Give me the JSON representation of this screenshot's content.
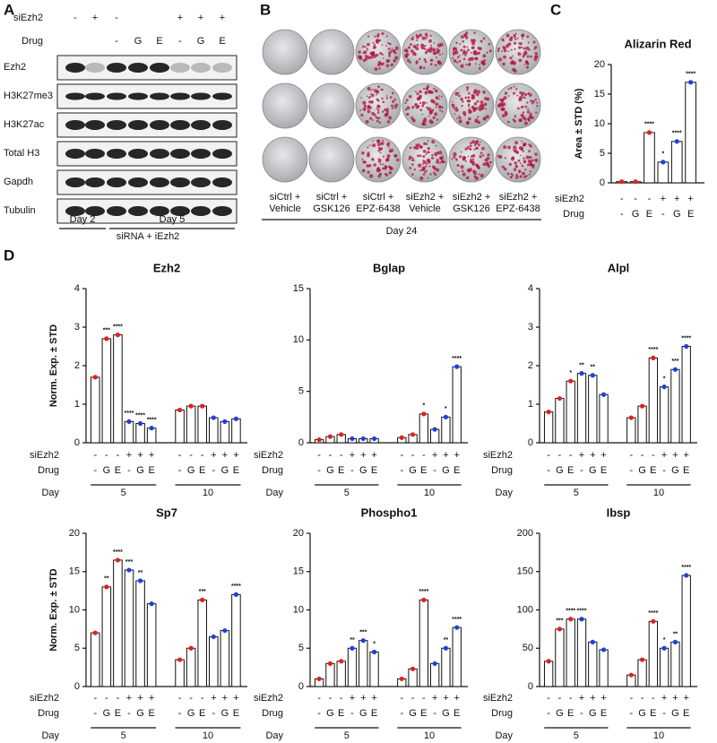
{
  "panel_labels": [
    "A",
    "B",
    "C",
    "D"
  ],
  "panel_a": {
    "row_labels": [
      {
        "label": "siEzh2",
        "values": [
          "-",
          "+",
          "-",
          null,
          null,
          "+",
          "+",
          "+"
        ]
      },
      {
        "label": "Drug",
        "values": [
          null,
          null,
          "-",
          "G",
          "E",
          "-",
          "G",
          "E"
        ]
      }
    ],
    "blots": [
      "Ezh2",
      "H3K27me3",
      "H3K27ac",
      "Total H3",
      "Gapdh",
      "Tubulin"
    ],
    "day_labels": [
      "Day 2",
      "Day 5"
    ],
    "footer": "siRNA + iEzh2"
  },
  "panel_b": {
    "conditions": [
      [
        "siCtrl +",
        "Vehicle"
      ],
      [
        "siCtrl +",
        "GSK126"
      ],
      [
        "siCtrl +",
        "EPZ-6438"
      ],
      [
        "siEzh2 +",
        "Vehicle"
      ],
      [
        "siEzh2 +",
        "GSK126"
      ],
      [
        "siEzh2 +",
        "EPZ-6438"
      ]
    ],
    "footer": "Day 24"
  },
  "chart_data": [
    {
      "type": "bar",
      "title": "Alizarin Red",
      "ylabel": "Area ± STD (%)",
      "values": [
        0.2,
        0.2,
        8.5,
        3.5,
        7,
        17
      ],
      "bar_colors": [
        "#e02020",
        "#e02020",
        "#e02020",
        "#1f3fe0",
        "#1f3fe0",
        "#1f3fe0"
      ],
      "annotations": [
        null,
        null,
        "****",
        "*",
        "****",
        "****"
      ],
      "ylim": [
        0,
        20
      ],
      "yticks": [
        0,
        5,
        10,
        15,
        20
      ],
      "row_labels": [
        {
          "label": "siEzh2",
          "values": [
            "-",
            "-",
            "-",
            "+",
            "+",
            "+"
          ]
        },
        {
          "label": "Drug",
          "values": [
            "-",
            "G",
            "E",
            "-",
            "G",
            "E"
          ]
        }
      ]
    },
    {
      "type": "bar",
      "title": "Ezh2",
      "ylabel": "Norm. Exp. ± STD",
      "values": [
        1.7,
        2.7,
        2.8,
        0.55,
        0.5,
        0.38,
        0.85,
        0.95,
        0.95,
        0.65,
        0.55,
        0.62
      ],
      "bar_colors": [
        "#e02020",
        "#e02020",
        "#e02020",
        "#1f3fe0",
        "#1f3fe0",
        "#1f3fe0",
        "#e02020",
        "#e02020",
        "#e02020",
        "#1f3fe0",
        "#1f3fe0",
        "#1f3fe0"
      ],
      "annotations": [
        null,
        "***",
        "****",
        "****",
        "****",
        "****",
        null,
        null,
        null,
        null,
        null,
        null
      ],
      "ylim": [
        0,
        4
      ],
      "yticks": [
        0,
        1,
        2,
        3,
        4
      ],
      "row_labels": [
        {
          "label": "siEzh2",
          "values": [
            "-",
            "-",
            "-",
            "+",
            "+",
            "+",
            "-",
            "-",
            "-",
            "+",
            "+",
            "+"
          ]
        },
        {
          "label": "Drug",
          "values": [
            "-",
            "G",
            "E",
            "-",
            "G",
            "E",
            "-",
            "G",
            "E",
            "-",
            "G",
            "E"
          ]
        }
      ],
      "day_label": "Day",
      "days": [
        "5",
        "10"
      ]
    },
    {
      "type": "bar",
      "title": "Bglap",
      "values": [
        0.3,
        0.6,
        0.8,
        0.4,
        0.4,
        0.4,
        0.5,
        0.8,
        2.8,
        1.3,
        2.5,
        7.4
      ],
      "bar_colors": [
        "#e02020",
        "#e02020",
        "#e02020",
        "#1f3fe0",
        "#1f3fe0",
        "#1f3fe0",
        "#e02020",
        "#e02020",
        "#e02020",
        "#1f3fe0",
        "#1f3fe0",
        "#1f3fe0"
      ],
      "annotations": [
        null,
        null,
        null,
        null,
        null,
        null,
        null,
        null,
        "*",
        null,
        "*",
        "****"
      ],
      "ylim": [
        0,
        15
      ],
      "yticks": [
        0,
        5,
        10,
        15
      ],
      "row_labels": [
        {
          "label": "siEzh2",
          "values": [
            "-",
            "-",
            "-",
            "+",
            "+",
            "+",
            "-",
            "-",
            "-",
            "+",
            "+",
            "+"
          ]
        },
        {
          "label": "Drug",
          "values": [
            "-",
            "G",
            "E",
            "-",
            "G",
            "E",
            "-",
            "G",
            "E",
            "-",
            "G",
            "E"
          ]
        }
      ],
      "day_label": "Day",
      "days": [
        "5",
        "10"
      ]
    },
    {
      "type": "bar",
      "title": "Alpl",
      "values": [
        0.8,
        1.15,
        1.6,
        1.8,
        1.75,
        1.25,
        0.65,
        0.95,
        2.2,
        1.45,
        1.9,
        2.5
      ],
      "bar_colors": [
        "#e02020",
        "#e02020",
        "#e02020",
        "#1f3fe0",
        "#1f3fe0",
        "#1f3fe0",
        "#e02020",
        "#e02020",
        "#e02020",
        "#1f3fe0",
        "#1f3fe0",
        "#1f3fe0"
      ],
      "annotations": [
        null,
        null,
        "*",
        "**",
        "**",
        null,
        null,
        null,
        "****",
        "*",
        "***",
        "****"
      ],
      "ylim": [
        0,
        4
      ],
      "yticks": [
        0,
        1,
        2,
        3,
        4
      ],
      "row_labels": [
        {
          "label": "siEzh2",
          "values": [
            "-",
            "-",
            "-",
            "+",
            "+",
            "+",
            "-",
            "-",
            "-",
            "+",
            "+",
            "+"
          ]
        },
        {
          "label": "Drug",
          "values": [
            "-",
            "G",
            "E",
            "-",
            "G",
            "E",
            "-",
            "G",
            "E",
            "-",
            "G",
            "E"
          ]
        }
      ],
      "day_label": "Day",
      "days": [
        "5",
        "10"
      ]
    },
    {
      "type": "bar",
      "title": "Sp7",
      "ylabel": "Norm. Exp. ± STD",
      "values": [
        7,
        13,
        16.5,
        15.2,
        13.8,
        10.8,
        3.5,
        5,
        11.3,
        6.5,
        7.3,
        12
      ],
      "bar_colors": [
        "#e02020",
        "#e02020",
        "#e02020",
        "#1f3fe0",
        "#1f3fe0",
        "#1f3fe0",
        "#e02020",
        "#e02020",
        "#e02020",
        "#1f3fe0",
        "#1f3fe0",
        "#1f3fe0"
      ],
      "annotations": [
        null,
        "**",
        "****",
        "***",
        "**",
        null,
        null,
        null,
        "***",
        null,
        null,
        "****"
      ],
      "ylim": [
        0,
        20
      ],
      "yticks": [
        0,
        5,
        10,
        15,
        20
      ],
      "row_labels": [
        {
          "label": "siEzh2",
          "values": [
            "-",
            "-",
            "-",
            "+",
            "+",
            "+",
            "-",
            "-",
            "-",
            "+",
            "+",
            "+"
          ]
        },
        {
          "label": "Drug",
          "values": [
            "-",
            "G",
            "E",
            "-",
            "G",
            "E",
            "-",
            "G",
            "E",
            "-",
            "G",
            "E"
          ]
        }
      ],
      "day_label": "Day",
      "days": [
        "5",
        "10"
      ]
    },
    {
      "type": "bar",
      "title": "Phospho1",
      "values": [
        1,
        3,
        3.3,
        5,
        6,
        4.5,
        1,
        2.3,
        11.3,
        3,
        5,
        7.7
      ],
      "bar_colors": [
        "#e02020",
        "#e02020",
        "#e02020",
        "#1f3fe0",
        "#1f3fe0",
        "#1f3fe0",
        "#e02020",
        "#e02020",
        "#e02020",
        "#1f3fe0",
        "#1f3fe0",
        "#1f3fe0"
      ],
      "annotations": [
        null,
        null,
        null,
        "**",
        "***",
        "*",
        null,
        null,
        "****",
        null,
        "**",
        "****"
      ],
      "ylim": [
        0,
        20
      ],
      "yticks": [
        0,
        5,
        10,
        15,
        20
      ],
      "row_labels": [
        {
          "label": "siEzh2",
          "values": [
            "-",
            "-",
            "-",
            "+",
            "+",
            "+",
            "-",
            "-",
            "-",
            "+",
            "+",
            "+"
          ]
        },
        {
          "label": "Drug",
          "values": [
            "-",
            "G",
            "E",
            "-",
            "G",
            "E",
            "-",
            "G",
            "E",
            "-",
            "G",
            "E"
          ]
        }
      ],
      "day_label": "Day",
      "days": [
        "5",
        "10"
      ]
    },
    {
      "type": "bar",
      "title": "Ibsp",
      "values": [
        33,
        75,
        88,
        88,
        58,
        48,
        15,
        35,
        85,
        50,
        58,
        145
      ],
      "bar_colors": [
        "#e02020",
        "#e02020",
        "#e02020",
        "#1f3fe0",
        "#1f3fe0",
        "#1f3fe0",
        "#e02020",
        "#e02020",
        "#e02020",
        "#1f3fe0",
        "#1f3fe0",
        "#1f3fe0"
      ],
      "annotations": [
        null,
        "***",
        "****",
        "****",
        null,
        null,
        null,
        null,
        "****",
        "*",
        "**",
        "****"
      ],
      "ylim": [
        0,
        200
      ],
      "yticks": [
        0,
        50,
        100,
        150,
        200
      ],
      "row_labels": [
        {
          "label": "siEzh2",
          "values": [
            "-",
            "-",
            "-",
            "+",
            "+",
            "+",
            "-",
            "-",
            "-",
            "+",
            "+",
            "+"
          ]
        },
        {
          "label": "Drug",
          "values": [
            "-",
            "G",
            "E",
            "-",
            "G",
            "E",
            "-",
            "G",
            "E",
            "-",
            "G",
            "E"
          ]
        }
      ],
      "day_label": "Day",
      "days": [
        "5",
        "10"
      ]
    }
  ]
}
